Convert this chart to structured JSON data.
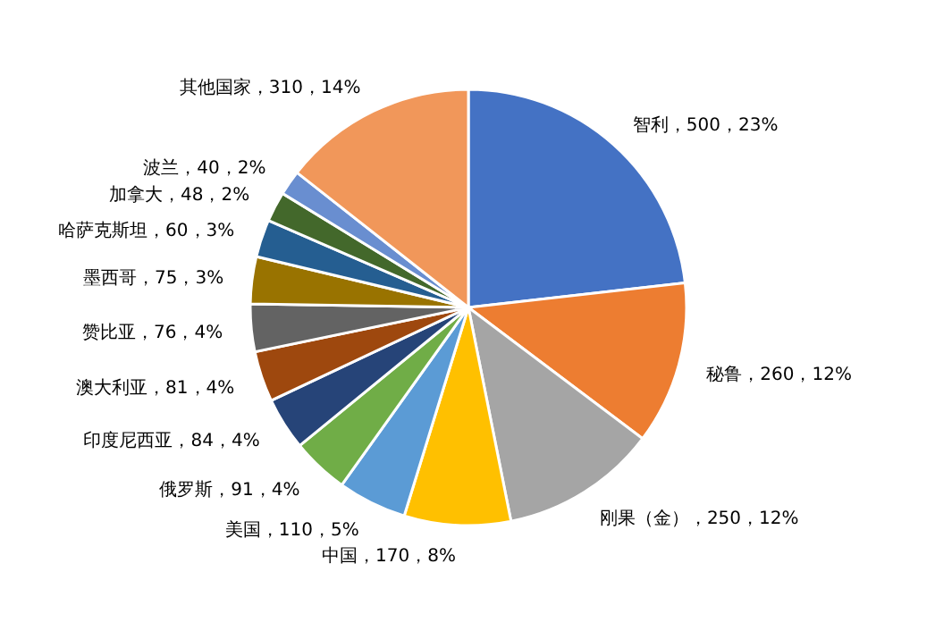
{
  "chart_data": {
    "type": "pie",
    "categories": [
      "智利",
      "秘鲁",
      "刚果（金）",
      "中国",
      "美国",
      "俄罗斯",
      "印度尼西亚",
      "澳大利亚",
      "赞比亚",
      "墨西哥",
      "哈萨克斯坦",
      "加拿大",
      "波兰",
      "其他国家"
    ],
    "values": [
      500,
      260,
      250,
      170,
      110,
      91,
      84,
      81,
      76,
      75,
      60,
      48,
      40,
      310
    ],
    "value_labels": [
      "，500，23%",
      "，260，12%",
      "，250，12%",
      "，170，8%",
      "，110，5%",
      "，91，4%",
      "，84，4%",
      "，81，4%",
      "，76，4%",
      "，75，3%",
      "，60，3%",
      "，48，2%",
      "，40，2%",
      "，310，14%"
    ],
    "colors": [
      "#4472c4",
      "#ed7d31",
      "#a5a5a5",
      "#ffc000",
      "#5b9bd5",
      "#70ad47",
      "#264478",
      "#9e480e",
      "#636363",
      "#997300",
      "#255e91",
      "#43682b",
      "#698ed0",
      "#f1975a"
    ]
  }
}
